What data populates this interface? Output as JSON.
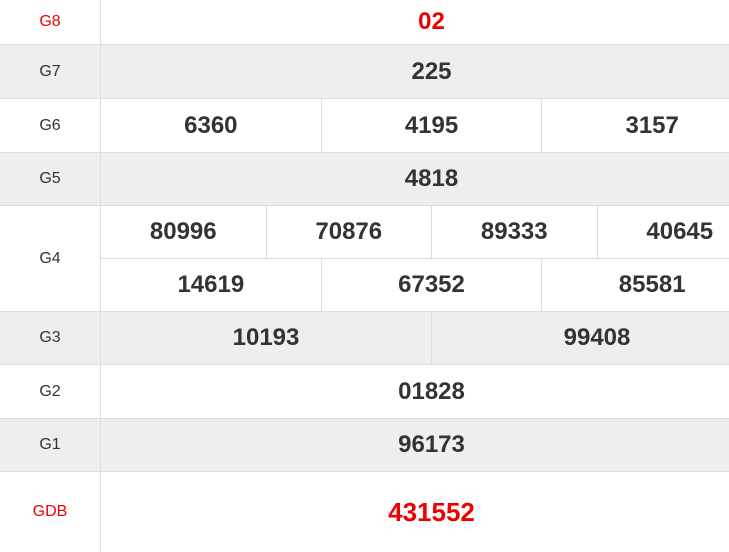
{
  "colors": {
    "highlight": "#e00000",
    "text": "#333333",
    "alt_row": "#eeeeee"
  },
  "rows": [
    {
      "label": "G8",
      "values": [
        "02"
      ],
      "red": true
    },
    {
      "label": "G7",
      "values": [
        "225"
      ]
    },
    {
      "label": "G6",
      "values": [
        "6360",
        "4195",
        "3157"
      ]
    },
    {
      "label": "G5",
      "values": [
        "4818"
      ]
    },
    {
      "label": "G4",
      "values": [
        "80996",
        "70876",
        "89333",
        "40645"
      ],
      "values2": [
        "14619",
        "67352",
        "85581"
      ]
    },
    {
      "label": "G3",
      "values": [
        "10193",
        "99408"
      ]
    },
    {
      "label": "G2",
      "values": [
        "01828"
      ]
    },
    {
      "label": "G1",
      "values": [
        "96173"
      ]
    },
    {
      "label": "GDB",
      "values": [
        "431552"
      ],
      "red": true
    }
  ]
}
